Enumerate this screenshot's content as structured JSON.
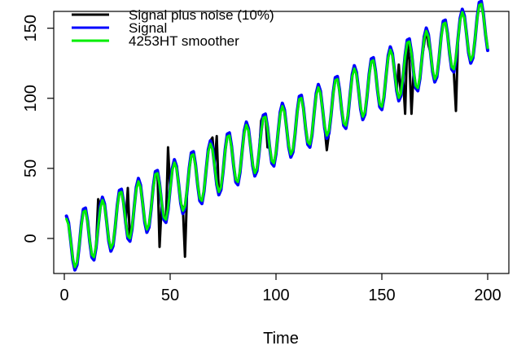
{
  "chart_data": {
    "type": "line",
    "title": "",
    "xlabel": "Time",
    "ylabel": "",
    "xlim": [
      -5,
      210
    ],
    "ylim": [
      -25,
      162
    ],
    "x_ticks": [
      0,
      50,
      100,
      150,
      200
    ],
    "y_ticks": [
      0,
      50,
      100,
      150
    ],
    "grid": false,
    "legend_position": "top-left",
    "x": {
      "start": 1,
      "end": 200,
      "step": 1
    },
    "trend": {
      "start": -5,
      "end": 152,
      "amplitude": 21,
      "period": 8.5
    },
    "series": [
      {
        "name": "Signal plus noise (10%)",
        "color": "#000000",
        "spikes": [
          {
            "x": 16,
            "y": 28
          },
          {
            "x": 30,
            "y": 36
          },
          {
            "x": 45,
            "y": -6
          },
          {
            "x": 49,
            "y": 65
          },
          {
            "x": 56,
            "y": 22
          },
          {
            "x": 57,
            "y": -13
          },
          {
            "x": 70,
            "y": 72
          },
          {
            "x": 72,
            "y": 73
          },
          {
            "x": 93,
            "y": 84
          },
          {
            "x": 96,
            "y": 65
          },
          {
            "x": 124,
            "y": 63
          },
          {
            "x": 158,
            "y": 124
          },
          {
            "x": 161,
            "y": 89
          },
          {
            "x": 163,
            "y": 127
          },
          {
            "x": 164,
            "y": 89
          },
          {
            "x": 170,
            "y": 139
          },
          {
            "x": 172,
            "y": 138
          },
          {
            "x": 185,
            "y": 91
          }
        ]
      },
      {
        "name": "Signal",
        "color": "#0000ff"
      },
      {
        "name": "4253HT smoother",
        "color": "#00ee00"
      }
    ]
  }
}
